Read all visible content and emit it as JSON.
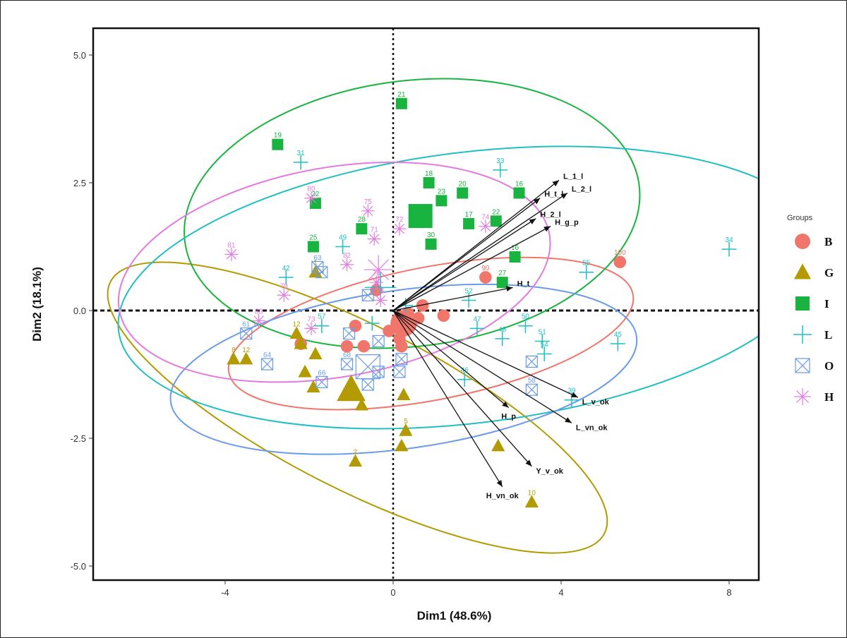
{
  "chart_data": {
    "type": "scatter",
    "xlabel": "Dim1 (48.6%)",
    "ylabel": "Dim2 (18.1%)",
    "xlim": [
      -7.1,
      8.8
    ],
    "ylim": [
      -5.3,
      5.5
    ],
    "xticks": [
      -4,
      0,
      4,
      8
    ],
    "xtick_labels": [
      "-4",
      "0",
      "4",
      "8"
    ],
    "yticks": [
      5.0,
      2.5,
      0.0,
      -2.5,
      -5.0
    ],
    "ytick_labels": [
      "5.0",
      "2.5",
      "0.0",
      "-2.5",
      "-5.0"
    ],
    "reference_lines": {
      "x": 0,
      "y": 0,
      "style": "dashed"
    },
    "legend": {
      "title": "Groups",
      "position": "right"
    },
    "groups": [
      {
        "name": "B",
        "color": "#f0766b",
        "marker": "circle",
        "centroid": [
          0.25,
          -0.25
        ],
        "ellipse": {
          "cx": 0.9,
          "cy": -0.45,
          "rx": 4.9,
          "ry": 1.3,
          "angle": -11
        },
        "points": [
          {
            "x": 5.4,
            "y": 0.95,
            "label": "100"
          },
          {
            "x": 2.2,
            "y": 0.65,
            "label": "90"
          },
          {
            "x": 1.2,
            "y": -0.1,
            "label": ""
          },
          {
            "x": 0.7,
            "y": 0.1,
            "label": ""
          },
          {
            "x": 0.6,
            "y": -0.15,
            "label": ""
          },
          {
            "x": -0.1,
            "y": -0.4,
            "label": ""
          },
          {
            "x": -0.4,
            "y": 0.4,
            "label": ""
          },
          {
            "x": -0.9,
            "y": -0.3,
            "label": ""
          },
          {
            "x": -1.1,
            "y": -0.7,
            "label": ""
          },
          {
            "x": -0.7,
            "y": -0.7,
            "label": ""
          },
          {
            "x": 0.2,
            "y": -0.7,
            "label": ""
          },
          {
            "x": -2.2,
            "y": -0.65,
            "label": ""
          },
          {
            "x": 0.35,
            "y": -0.05,
            "label": ""
          },
          {
            "x": 0.15,
            "y": -0.55,
            "label": ""
          }
        ]
      },
      {
        "name": "G",
        "color": "#b29a00",
        "marker": "triangle",
        "centroid": [
          -1.0,
          -1.55
        ],
        "ellipse": {
          "cx": -0.85,
          "cy": -1.9,
          "rx": 6.6,
          "ry": 1.6,
          "angle": 27
        },
        "points": [
          {
            "x": 3.3,
            "y": -3.75,
            "label": "10"
          },
          {
            "x": 2.5,
            "y": -2.65,
            "label": ""
          },
          {
            "x": 0.3,
            "y": -2.35,
            "label": "5"
          },
          {
            "x": 0.2,
            "y": -2.65,
            "label": ""
          },
          {
            "x": 0.25,
            "y": -1.65,
            "label": ""
          },
          {
            "x": -0.9,
            "y": -2.95,
            "label": "2"
          },
          {
            "x": -0.75,
            "y": -1.85,
            "label": ""
          },
          {
            "x": -1.85,
            "y": -0.85,
            "label": ""
          },
          {
            "x": -2.1,
            "y": -1.2,
            "label": ""
          },
          {
            "x": -1.9,
            "y": -1.5,
            "label": ""
          },
          {
            "x": -2.2,
            "y": -0.65,
            "label": ""
          },
          {
            "x": -2.3,
            "y": -0.45,
            "label": "12"
          },
          {
            "x": -3.5,
            "y": -0.95,
            "label": "12"
          },
          {
            "x": -3.8,
            "y": -0.95,
            "label": "8"
          },
          {
            "x": -1.85,
            "y": 0.75,
            "label": "1"
          }
        ]
      },
      {
        "name": "I",
        "color": "#19b33f",
        "marker": "square",
        "centroid": [
          0.65,
          1.85
        ],
        "ellipse": {
          "cx": 0.45,
          "cy": 1.9,
          "rx": 5.45,
          "ry": 2.6,
          "angle": -7
        },
        "points": [
          {
            "x": 0.2,
            "y": 4.05,
            "label": "21"
          },
          {
            "x": -2.75,
            "y": 3.25,
            "label": "19"
          },
          {
            "x": 0.85,
            "y": 2.5,
            "label": "18"
          },
          {
            "x": 1.65,
            "y": 2.3,
            "label": "20"
          },
          {
            "x": 1.15,
            "y": 2.15,
            "label": "23"
          },
          {
            "x": 3.0,
            "y": 2.3,
            "label": "16"
          },
          {
            "x": -1.85,
            "y": 2.1,
            "label": "22"
          },
          {
            "x": -0.75,
            "y": 1.6,
            "label": "28"
          },
          {
            "x": 1.8,
            "y": 1.7,
            "label": "17"
          },
          {
            "x": 2.45,
            "y": 1.75,
            "label": "22"
          },
          {
            "x": 0.9,
            "y": 1.3,
            "label": "30"
          },
          {
            "x": -1.9,
            "y": 1.25,
            "label": "25"
          },
          {
            "x": 2.9,
            "y": 1.05,
            "label": "16"
          },
          {
            "x": 2.6,
            "y": 0.55,
            "label": "27"
          }
        ]
      },
      {
        "name": "L",
        "color": "#1fbfc4",
        "marker": "plus",
        "centroid": [
          -0.3,
          0.45
        ],
        "ellipse": {
          "cx": 1.85,
          "cy": 0.45,
          "rx": 8.45,
          "ry": 2.65,
          "angle": -7
        },
        "points": [
          {
            "x": -2.2,
            "y": 2.9,
            "label": "31"
          },
          {
            "x": 2.55,
            "y": 2.75,
            "label": "33"
          },
          {
            "x": 8.0,
            "y": 1.2,
            "label": "34"
          },
          {
            "x": 4.6,
            "y": 0.75,
            "label": "55"
          },
          {
            "x": -1.2,
            "y": 1.25,
            "label": "49"
          },
          {
            "x": -2.55,
            "y": 0.65,
            "label": "42"
          },
          {
            "x": 1.8,
            "y": 0.2,
            "label": "52"
          },
          {
            "x": 3.15,
            "y": -0.3,
            "label": "50"
          },
          {
            "x": 2.0,
            "y": -0.35,
            "label": "47"
          },
          {
            "x": 2.6,
            "y": -0.55,
            "label": "48"
          },
          {
            "x": 3.55,
            "y": -0.6,
            "label": "51"
          },
          {
            "x": 5.35,
            "y": -0.65,
            "label": "45"
          },
          {
            "x": 3.6,
            "y": -0.85,
            "label": "54"
          },
          {
            "x": 1.7,
            "y": -1.35,
            "label": "46"
          },
          {
            "x": 4.25,
            "y": -1.75,
            "label": "39"
          },
          {
            "x": -1.7,
            "y": -0.3,
            "label": "57"
          },
          {
            "x": -0.5,
            "y": -0.25,
            "label": ""
          },
          {
            "x": 0.3,
            "y": 0.1,
            "label": ""
          }
        ]
      },
      {
        "name": "O",
        "color": "#6b9be8",
        "marker": "boxx",
        "centroid": [
          -0.6,
          -1.1
        ],
        "ellipse": {
          "cx": 0.25,
          "cy": -1.15,
          "rx": 5.6,
          "ry": 1.55,
          "angle": -8
        },
        "points": [
          {
            "x": -3.5,
            "y": -0.45,
            "label": "61"
          },
          {
            "x": -3.0,
            "y": -1.05,
            "label": "64"
          },
          {
            "x": -1.7,
            "y": -1.4,
            "label": "66"
          },
          {
            "x": -1.1,
            "y": -1.05,
            "label": "68"
          },
          {
            "x": -0.6,
            "y": -1.45,
            "label": ""
          },
          {
            "x": -0.35,
            "y": -1.2,
            "label": ""
          },
          {
            "x": 0.15,
            "y": -1.2,
            "label": ""
          },
          {
            "x": 0.2,
            "y": -0.95,
            "label": ""
          },
          {
            "x": -0.35,
            "y": -0.6,
            "label": ""
          },
          {
            "x": -1.05,
            "y": -0.45,
            "label": ""
          },
          {
            "x": -1.8,
            "y": 0.85,
            "label": "63"
          },
          {
            "x": -1.7,
            "y": 0.75,
            "label": ""
          },
          {
            "x": -0.6,
            "y": 0.3,
            "label": ""
          },
          {
            "x": 3.3,
            "y": -1.0,
            "label": ""
          },
          {
            "x": 3.3,
            "y": -1.55,
            "label": "58"
          }
        ]
      },
      {
        "name": "H",
        "color": "#e37ae0",
        "marker": "star",
        "centroid": [
          -0.35,
          0.8
        ],
        "ellipse": {
          "cx": -1.4,
          "cy": 0.75,
          "rx": 5.2,
          "ry": 2.05,
          "angle": -10
        },
        "points": [
          {
            "x": -1.95,
            "y": 2.2,
            "label": "80"
          },
          {
            "x": -0.6,
            "y": 1.95,
            "label": "75"
          },
          {
            "x": 0.15,
            "y": 1.6,
            "label": "72"
          },
          {
            "x": 2.2,
            "y": 1.65,
            "label": "74"
          },
          {
            "x": -0.45,
            "y": 1.4,
            "label": "71"
          },
          {
            "x": -3.85,
            "y": 1.1,
            "label": "81"
          },
          {
            "x": -1.1,
            "y": 0.9,
            "label": "82"
          },
          {
            "x": -0.4,
            "y": 0.55,
            "label": "78"
          },
          {
            "x": -2.6,
            "y": 0.3,
            "label": "79"
          },
          {
            "x": -1.95,
            "y": -0.35,
            "label": "73"
          },
          {
            "x": -3.2,
            "y": -0.2,
            "label": "83"
          },
          {
            "x": -0.3,
            "y": 0.2,
            "label": "76"
          }
        ]
      }
    ],
    "variables": [
      {
        "name": "L_1_l",
        "x": 3.95,
        "y": 2.55
      },
      {
        "name": "L_2_l",
        "x": 4.15,
        "y": 2.3
      },
      {
        "name": "H_t_l",
        "x": 3.5,
        "y": 2.2
      },
      {
        "name": "H_2_l",
        "x": 3.4,
        "y": 1.8
      },
      {
        "name": "H_g_p",
        "x": 3.75,
        "y": 1.65
      },
      {
        "name": "H_t",
        "x": 2.85,
        "y": 0.45
      },
      {
        "name": "L_v_ok",
        "x": 4.4,
        "y": -1.7
      },
      {
        "name": "L_vn_ok",
        "x": 4.25,
        "y": -2.2
      },
      {
        "name": "H_p",
        "x": 2.75,
        "y": -1.9
      },
      {
        "name": "Y_v_ok",
        "x": 3.3,
        "y": -3.05
      },
      {
        "name": "H_vn_ok",
        "x": 2.6,
        "y": -3.45
      }
    ]
  }
}
